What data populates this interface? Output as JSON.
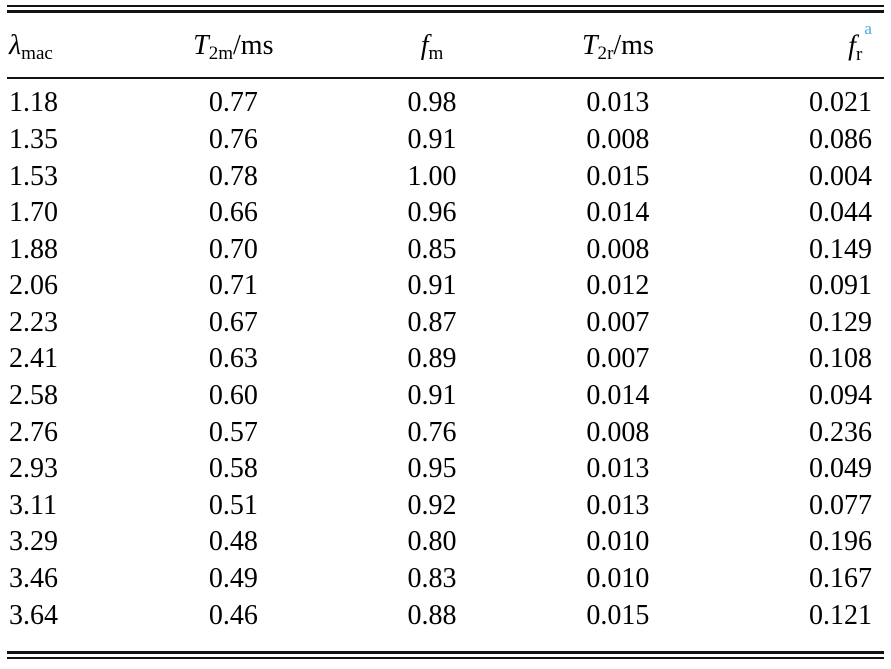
{
  "page": {
    "background_color": "#ffffff",
    "text_color": "#000000",
    "rule_color": "#121212",
    "footnote_link_color": "#4aabe2"
  },
  "table": {
    "columns": [
      {
        "symbol": "λ",
        "subscript": "mac",
        "suffix": "",
        "footnote": ""
      },
      {
        "symbol": "T",
        "subscript": "2m",
        "suffix": "/ms",
        "footnote": ""
      },
      {
        "symbol": "f",
        "subscript": "m",
        "suffix": "",
        "footnote": ""
      },
      {
        "symbol": "T",
        "subscript": "2r",
        "suffix": "/ms",
        "footnote": ""
      },
      {
        "symbol": "f",
        "subscript": "r",
        "suffix": "",
        "footnote": "a"
      }
    ],
    "rows": [
      [
        "1.18",
        "0.77",
        "0.98",
        "0.013",
        "0.021"
      ],
      [
        "1.35",
        "0.76",
        "0.91",
        "0.008",
        "0.086"
      ],
      [
        "1.53",
        "0.78",
        "1.00",
        "0.015",
        "0.004"
      ],
      [
        "1.70",
        "0.66",
        "0.96",
        "0.014",
        "0.044"
      ],
      [
        "1.88",
        "0.70",
        "0.85",
        "0.008",
        "0.149"
      ],
      [
        "2.06",
        "0.71",
        "0.91",
        "0.012",
        "0.091"
      ],
      [
        "2.23",
        "0.67",
        "0.87",
        "0.007",
        "0.129"
      ],
      [
        "2.41",
        "0.63",
        "0.89",
        "0.007",
        "0.108"
      ],
      [
        "2.58",
        "0.60",
        "0.91",
        "0.014",
        "0.094"
      ],
      [
        "2.76",
        "0.57",
        "0.76",
        "0.008",
        "0.236"
      ],
      [
        "2.93",
        "0.58",
        "0.95",
        "0.013",
        "0.049"
      ],
      [
        "3.11",
        "0.51",
        "0.92",
        "0.013",
        "0.077"
      ],
      [
        "3.29",
        "0.48",
        "0.80",
        "0.010",
        "0.196"
      ],
      [
        "3.46",
        "0.49",
        "0.83",
        "0.010",
        "0.167"
      ],
      [
        "3.64",
        "0.46",
        "0.88",
        "0.015",
        "0.121"
      ]
    ]
  }
}
